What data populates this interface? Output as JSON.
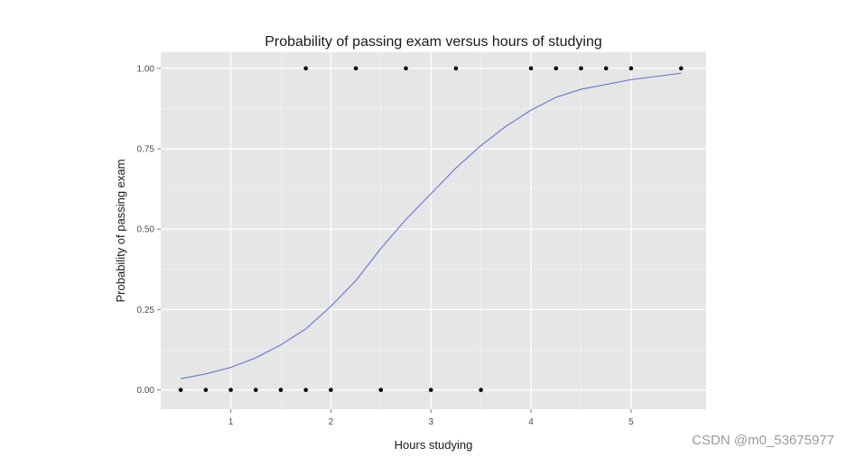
{
  "chart_data": {
    "type": "scatter",
    "title": "Probability of passing exam versus hours of studying",
    "xlabel": "Hours studying",
    "ylabel": "Probability of passing exam",
    "xlim": [
      0.3,
      5.75
    ],
    "ylim": [
      -0.06,
      1.05
    ],
    "xticks": [
      1,
      2,
      3,
      4,
      5
    ],
    "yticks": [
      0.0,
      0.25,
      0.5,
      0.75,
      1.0
    ],
    "xtick_labels": [
      "1",
      "2",
      "3",
      "4",
      "5"
    ],
    "ytick_labels": [
      "0.00",
      "0.25",
      "0.50",
      "0.75",
      "1.00"
    ],
    "grid": true,
    "colors": {
      "panel": "#e6e6e6",
      "grid": "#ffffff",
      "points": "#000000",
      "curve": "#6b7fd1"
    },
    "series": [
      {
        "type": "scatter",
        "points": [
          {
            "x": 0.5,
            "y": 0
          },
          {
            "x": 0.75,
            "y": 0
          },
          {
            "x": 1.0,
            "y": 0
          },
          {
            "x": 1.25,
            "y": 0
          },
          {
            "x": 1.5,
            "y": 0
          },
          {
            "x": 1.75,
            "y": 0
          },
          {
            "x": 1.75,
            "y": 1
          },
          {
            "x": 2.0,
            "y": 0
          },
          {
            "x": 2.25,
            "y": 1
          },
          {
            "x": 2.5,
            "y": 0
          },
          {
            "x": 2.75,
            "y": 1
          },
          {
            "x": 3.0,
            "y": 0
          },
          {
            "x": 3.25,
            "y": 1
          },
          {
            "x": 3.5,
            "y": 0
          },
          {
            "x": 4.0,
            "y": 1
          },
          {
            "x": 4.25,
            "y": 1
          },
          {
            "x": 4.5,
            "y": 1
          },
          {
            "x": 4.75,
            "y": 1
          },
          {
            "x": 5.0,
            "y": 1
          },
          {
            "x": 5.5,
            "y": 1
          }
        ]
      },
      {
        "type": "line",
        "x": [
          0.5,
          0.75,
          1.0,
          1.25,
          1.5,
          1.75,
          2.0,
          2.25,
          2.5,
          2.75,
          3.0,
          3.25,
          3.5,
          3.75,
          4.0,
          4.25,
          4.5,
          4.75,
          5.0,
          5.25,
          5.5
        ],
        "y": [
          0.035,
          0.05,
          0.07,
          0.1,
          0.14,
          0.19,
          0.26,
          0.34,
          0.44,
          0.53,
          0.61,
          0.69,
          0.76,
          0.82,
          0.87,
          0.91,
          0.935,
          0.95,
          0.965,
          0.975,
          0.985
        ]
      }
    ]
  },
  "watermark": "CSDN @m0_53675977"
}
